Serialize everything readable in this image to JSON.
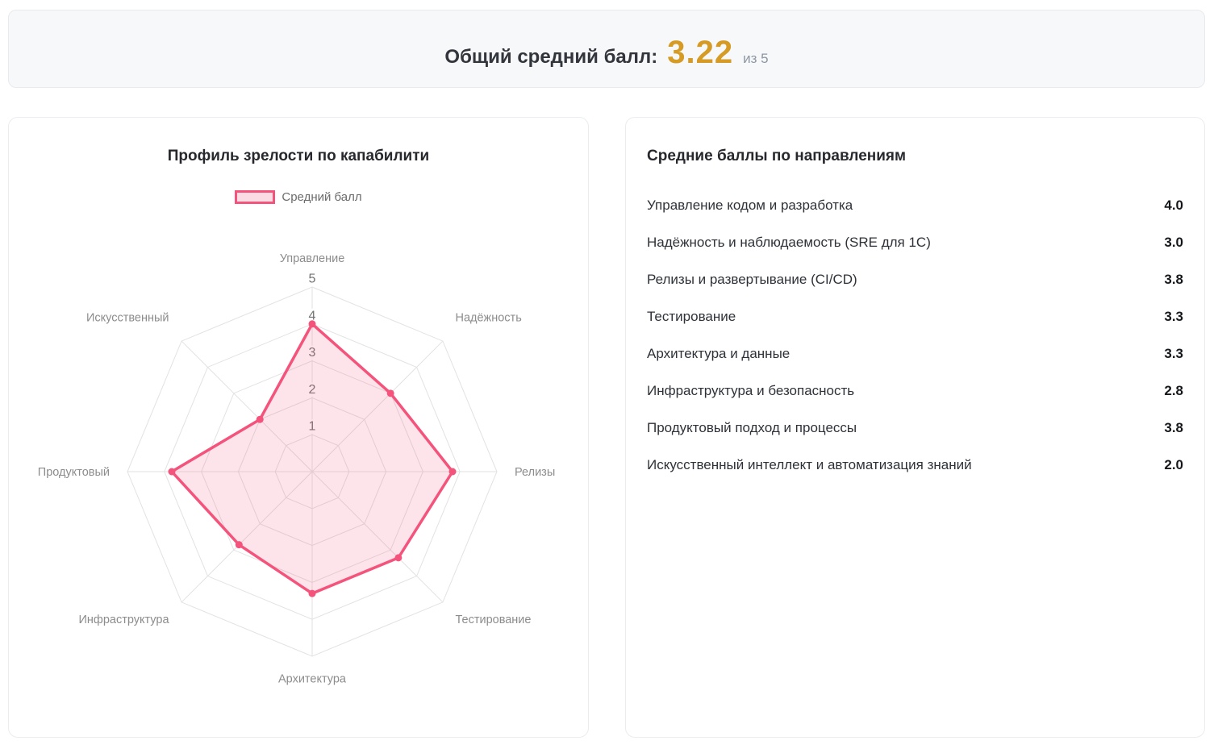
{
  "summary_banner": {
    "label": "Общий средний балл:",
    "score": "3.22",
    "out_of": "из 5"
  },
  "chart_card": {
    "title": "Профиль зрелости по капабилити",
    "legend_label": "Средний балл"
  },
  "chart_data": {
    "type": "radar",
    "title": "Профиль зрелости по капабилити",
    "legend": [
      "Средний балл"
    ],
    "axes": [
      "Управление",
      "Надёжность",
      "Релизы",
      "Тестирование",
      "Архитектура",
      "Инфраструктура",
      "Продуктовый",
      "Искусственный"
    ],
    "series": [
      {
        "name": "Средний балл",
        "values": [
          4.0,
          3.0,
          3.8,
          3.3,
          3.3,
          2.8,
          3.8,
          2.0
        ]
      }
    ],
    "scale": {
      "min": 0,
      "max": 5,
      "ticks": [
        1,
        2,
        3,
        4,
        5
      ]
    },
    "colors": {
      "stroke": "#f4547c",
      "fill": "rgba(244, 84, 124, 0.16)",
      "grid": "#e2e2e2",
      "tick_label": "#737373",
      "axis_label": "#8c8c8c",
      "tick_backdrop": "rgba(255,255,255,0.85)"
    }
  },
  "scores_card": {
    "title": "Средние баллы по направлениям",
    "rows": [
      {
        "label": "Управление кодом и разработка",
        "value": "4.0"
      },
      {
        "label": "Надёжность и наблюдаемость (SRE для 1С)",
        "value": "3.0"
      },
      {
        "label": "Релизы и развертывание (CI/CD)",
        "value": "3.8"
      },
      {
        "label": "Тестирование",
        "value": "3.3"
      },
      {
        "label": "Архитектура и данные",
        "value": "3.3"
      },
      {
        "label": "Инфраструктура и безопасность",
        "value": "2.8"
      },
      {
        "label": "Продуктовый подход и процессы",
        "value": "3.8"
      },
      {
        "label": "Искусственный интеллект и автоматизация знаний",
        "value": "2.0"
      }
    ]
  },
  "theme": {
    "accent_score_color": "#d59b24",
    "banner_bg": "#f7f8fa",
    "card_border": "#eaecf0"
  }
}
